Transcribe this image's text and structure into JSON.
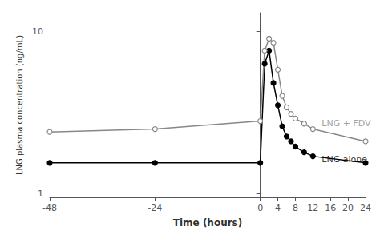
{
  "chart_data": {
    "type": "line",
    "xlabel": "Time (hours)",
    "ylabel": "LNG plasma concentration (ng/mL)",
    "log": "y",
    "grid": false,
    "xlim": [
      -48,
      24
    ],
    "xticks": [
      -48,
      -24,
      0,
      4,
      8,
      12,
      16,
      20,
      24
    ],
    "ylim": [
      0.95,
      13
    ],
    "yticks": [
      1,
      10
    ],
    "series": [
      {
        "name": "LNG alone",
        "color": "#000000",
        "marker": "filled_circle",
        "x": [
          -48,
          -24,
          0,
          1,
          2,
          3,
          4,
          5,
          6,
          7,
          8,
          10,
          12,
          24
        ],
        "values": [
          1.55,
          1.55,
          1.55,
          6.3,
          7.6,
          4.8,
          3.5,
          2.6,
          2.25,
          2.1,
          1.95,
          1.8,
          1.7,
          1.55
        ]
      },
      {
        "name": "LNG + FDV",
        "color": "#888888",
        "marker": "open_circle",
        "x": [
          -48,
          -24,
          0,
          1,
          2,
          3,
          4,
          5,
          6,
          7,
          8,
          10,
          12,
          24
        ],
        "values": [
          2.4,
          2.5,
          2.8,
          7.6,
          9.0,
          8.5,
          5.8,
          4.0,
          3.4,
          3.1,
          2.9,
          2.7,
          2.5,
          2.1
        ]
      }
    ],
    "annotations": [
      {
        "text": "LNG + FDV",
        "x": 14,
        "y": 2.7,
        "color": "#888888"
      },
      {
        "text": "LNG alone",
        "x": 14,
        "y": 1.62,
        "color": "#000000"
      }
    ]
  }
}
